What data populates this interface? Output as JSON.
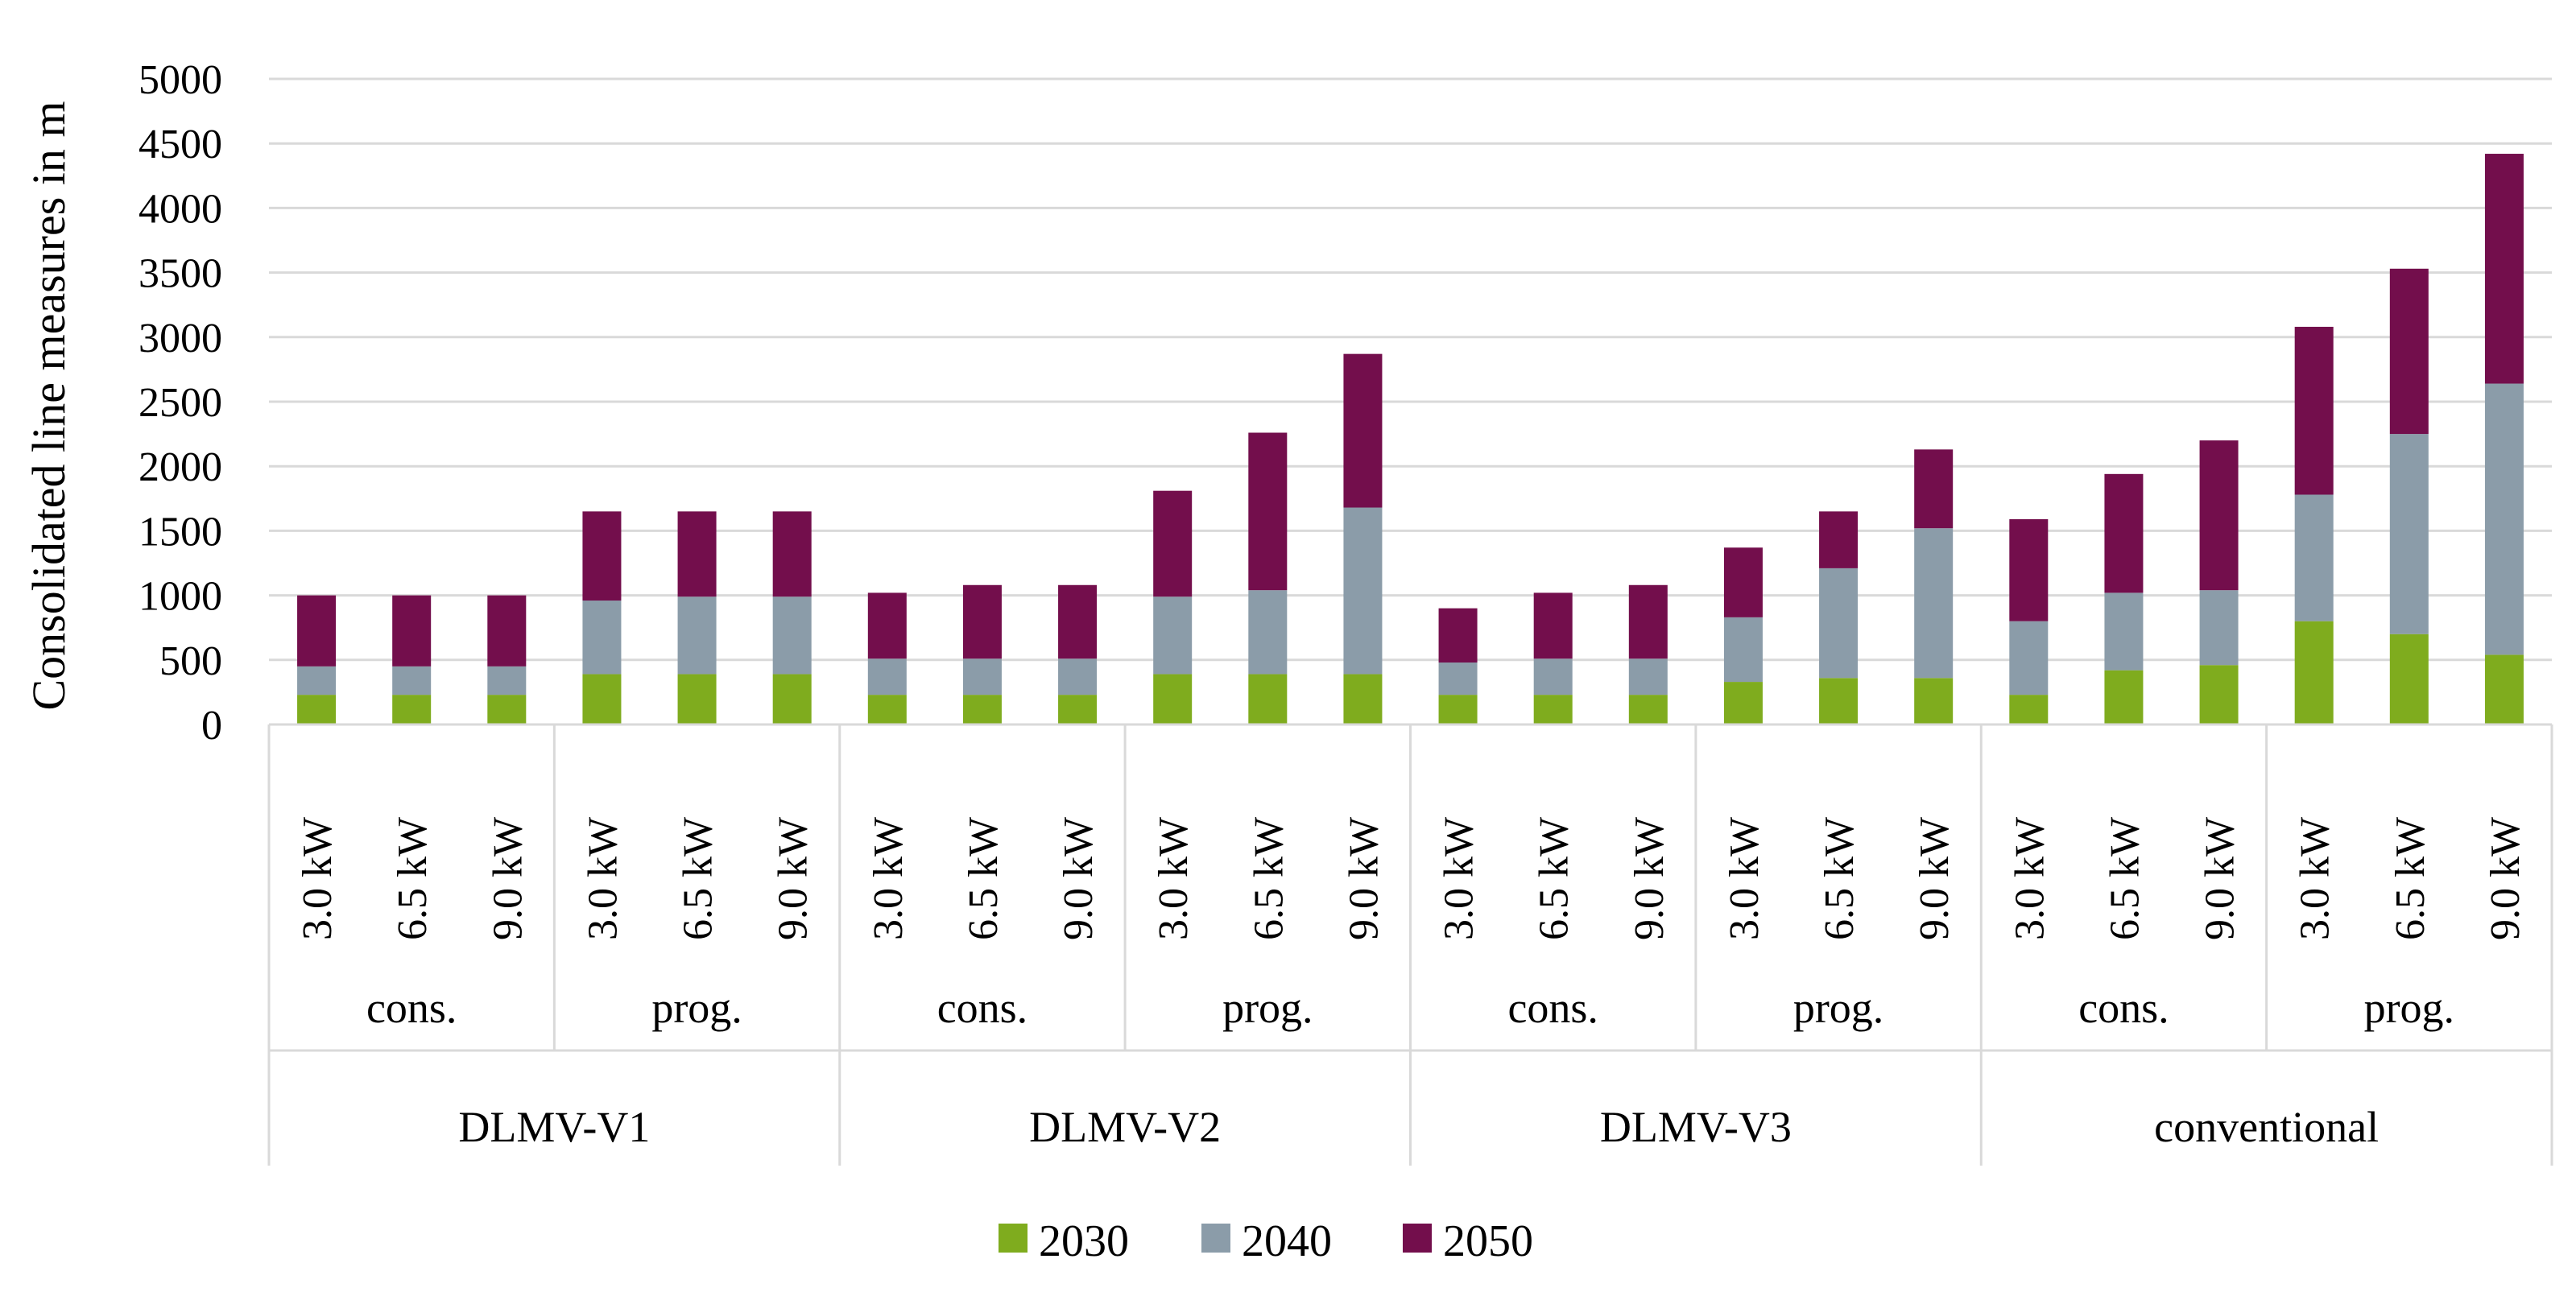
{
  "chart_data": {
    "type": "bar",
    "stacked": true,
    "ylabel": "Consolidated line measures in m",
    "ylim": [
      0,
      5000
    ],
    "yticks": [
      0,
      500,
      1000,
      1500,
      2000,
      2500,
      3000,
      3500,
      4000,
      4500,
      5000
    ],
    "grid": true,
    "legend_position": "bottom-center",
    "level1_labels": [
      "3.0 kW",
      "6.5 kW",
      "9.0 kW"
    ],
    "level2_labels": [
      "cons.",
      "prog."
    ],
    "level3_labels": [
      "DLMV-V1",
      "DLMV-V2",
      "DLMV-V3",
      "conventional"
    ],
    "series": [
      {
        "name": "2030",
        "color": "#7fac1e",
        "values": [
          230,
          230,
          230,
          390,
          390,
          390,
          230,
          230,
          230,
          390,
          390,
          390,
          230,
          230,
          230,
          330,
          360,
          360,
          230,
          420,
          460,
          800,
          700,
          540
        ]
      },
      {
        "name": "2040",
        "color": "#8b9ca9",
        "values": [
          220,
          220,
          220,
          570,
          600,
          600,
          280,
          280,
          280,
          600,
          650,
          1290,
          250,
          280,
          280,
          500,
          850,
          1160,
          570,
          600,
          580,
          980,
          1550,
          2100
        ]
      },
      {
        "name": "2050",
        "color": "#730e4c",
        "values": [
          550,
          550,
          550,
          690,
          660,
          660,
          510,
          570,
          570,
          820,
          1220,
          1190,
          420,
          510,
          570,
          540,
          440,
          610,
          790,
          920,
          1160,
          1300,
          1280,
          1780
        ]
      }
    ]
  }
}
